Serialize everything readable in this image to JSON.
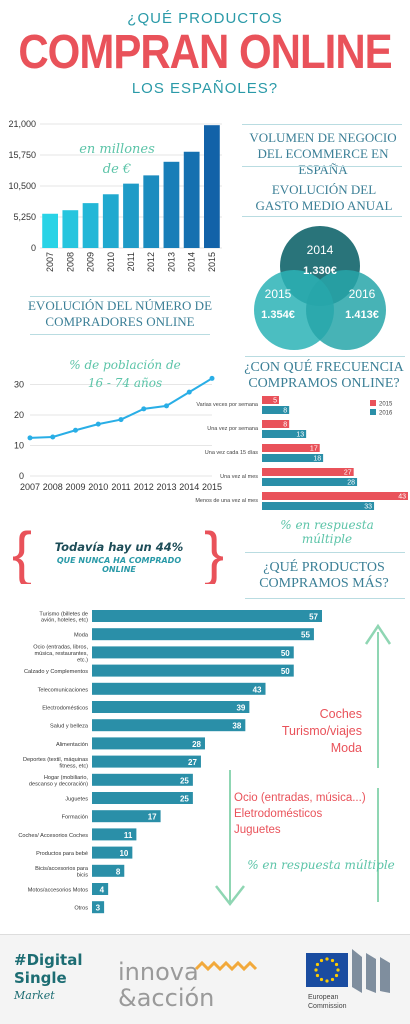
{
  "header": {
    "line1": "¿QUÉ PRODUCTOS",
    "line2": "COMPRAN ONLINE",
    "line3": "LOS ESPAÑOLES?"
  },
  "sections": {
    "volumen_title": "VOLUMEN DE NEGOCIO DEL ECOMMERCE EN ESPAÑA",
    "gasto_title": "EVOLUCIÓN DEL GASTO MEDIO ANUAL",
    "compradores_title": "EVOLUCIÓN DEL NÚMERO DE COMPRADORES ONLINE",
    "frecuencia_title": "¿CON QUÉ FRECUENCIA COMPRAMOS ONLINE?",
    "productos_title": "¿QUÉ PRODUCTOS COMPRAMOS MÁS?"
  },
  "notes": {
    "millones": "en millones de €",
    "poblacion": "% de población de 16 - 74 años",
    "respuesta1": "% en respuesta múltiple",
    "respuesta2": "% en respuesta múltiple",
    "callout_line1": "Todavía hay un 44%",
    "callout_line2": "QUE NUNCA HA COMPRADO",
    "callout_line3": "ONLINE",
    "top_group": [
      "Coches",
      "Turismo/viajes",
      "Moda"
    ],
    "mid_group": [
      "Ocio (entradas, música...)",
      "Eletrodomésticos",
      "Juguetes"
    ]
  },
  "venn": {
    "a": {
      "year": "2014",
      "value": "1.330€"
    },
    "b": {
      "year": "2015",
      "value": "1.354€"
    },
    "c": {
      "year": "2016",
      "value": "1.413€"
    },
    "colors": [
      "#1d6d73",
      "#2bb3b6",
      "#27a6a9"
    ]
  },
  "footer": {
    "dsm1": "#Digital",
    "dsm2": "Single",
    "dsm3": "Market",
    "innova1": "innova",
    "innova2": "&acción",
    "ec1": "European",
    "ec2": "Commission"
  },
  "chart_data": [
    {
      "type": "bar",
      "categories": [
        "2007",
        "2008",
        "2009",
        "2010",
        "2011",
        "2012",
        "2013",
        "2014",
        "2015"
      ],
      "values": [
        5800,
        6400,
        7600,
        9100,
        10900,
        12300,
        14600,
        16300,
        20800
      ],
      "ylim": [
        0,
        21000
      ],
      "yticks": [
        "21,000",
        "15,750",
        "10,500",
        "5,250",
        "0"
      ],
      "colors": [
        "#29d3e6",
        "#1262a8"
      ]
    },
    {
      "type": "line",
      "x": [
        "2007",
        "2008",
        "2009",
        "2010",
        "2011",
        "2012",
        "2013",
        "2014",
        "2015"
      ],
      "values": [
        12.5,
        12.8,
        15,
        17,
        18.5,
        22,
        23,
        27.5,
        32
      ],
      "ylim": [
        0,
        40
      ],
      "yticks": [
        "30",
        "20",
        "10",
        "0"
      ],
      "color": "#29aee6"
    },
    {
      "type": "bar",
      "orientation": "horizontal",
      "categories": [
        "Varias veces por semana",
        "Una vez por semana",
        "Una vez cada 15 días",
        "Una vez al mes",
        "Menos de una vez al mes"
      ],
      "series": [
        {
          "name": "2015",
          "values": [
            5,
            8,
            17,
            27,
            43
          ],
          "color": "#e9525a"
        },
        {
          "name": "2016",
          "values": [
            8,
            13,
            18,
            28,
            33
          ],
          "color": "#2a8fa8"
        }
      ],
      "xlim": [
        0,
        43
      ]
    },
    {
      "type": "bar",
      "orientation": "horizontal",
      "categories": [
        "Turismo (billetes de avión, hoteles, etc)",
        "Moda",
        "Ocio (entradas, libros, música, restaurantes, etc.)",
        "Calzado y Complementos",
        "Telecomunicaciones",
        "Electrodomésticos",
        "Salud y belleza",
        "Alimentación",
        "Deportes (textil, máquinas fitness, etc)",
        "Hogar (mobiliario, descanso y decoración)",
        "Juguetes",
        "Formación",
        "Coches/ Accesorios Coches",
        "Productos para bebé",
        "Bicis/accesorios para bicis",
        "Motos/accesorios Motos",
        "Otros"
      ],
      "values": [
        57,
        55,
        50,
        50,
        43,
        39,
        38,
        28,
        27,
        25,
        25,
        17,
        11,
        10,
        8,
        4,
        3
      ],
      "xlim": [
        0,
        57
      ],
      "color": "#2a8fa8"
    }
  ]
}
